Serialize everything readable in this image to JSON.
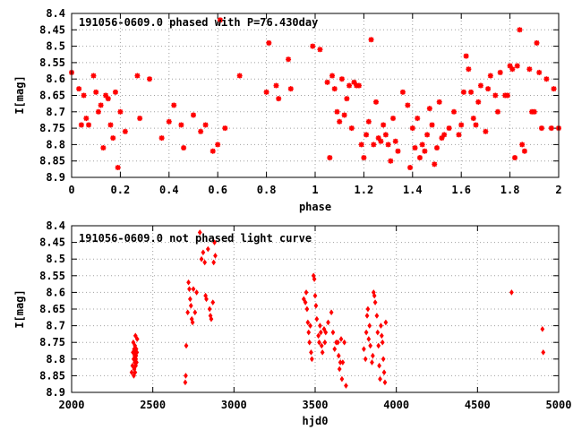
{
  "colors": {
    "points": "#ff0000",
    "axes": "#000000",
    "grid": "#a0a0a0"
  },
  "chart_data": [
    {
      "type": "scatter",
      "title": "191056-0609.0 phased with P=76.430day",
      "xlabel": "phase",
      "ylabel": "I[mag]",
      "xlim": [
        0,
        2
      ],
      "ylim": [
        8.4,
        8.9
      ],
      "y_inverted": true,
      "grid": true,
      "x_ticks": [
        "0",
        "0.2",
        "0.4",
        "0.6",
        "0.8",
        "1",
        "1.2",
        "1.4",
        "1.6",
        "1.8",
        "2"
      ],
      "y_ticks": [
        "8.4",
        "8.45",
        "8.5",
        "8.55",
        "8.6",
        "8.65",
        "8.7",
        "8.75",
        "8.8",
        "8.85",
        "8.9"
      ],
      "series": [
        {
          "marker": "star",
          "x": [
            0.0,
            0.03,
            0.04,
            0.05,
            0.06,
            0.07,
            0.09,
            0.1,
            0.11,
            0.12,
            0.13,
            0.14,
            0.15,
            0.16,
            0.17,
            0.18,
            0.19,
            0.2,
            0.22,
            0.27,
            0.28,
            0.32,
            0.37,
            0.4,
            0.42,
            0.45,
            0.46,
            0.5,
            0.53,
            0.55,
            0.58,
            0.6,
            0.61,
            0.63,
            0.69,
            0.8,
            0.81,
            0.84,
            0.85,
            0.89,
            0.9,
            0.99,
            1.02,
            1.05,
            1.06,
            1.07,
            1.08,
            1.09,
            1.1,
            1.11,
            1.12,
            1.13,
            1.14,
            1.15,
            1.16,
            1.17,
            1.18,
            1.19,
            1.2,
            1.21,
            1.22,
            1.23,
            1.24,
            1.25,
            1.26,
            1.27,
            1.28,
            1.29,
            1.3,
            1.31,
            1.32,
            1.33,
            1.34,
            1.36,
            1.38,
            1.39,
            1.4,
            1.41,
            1.42,
            1.43,
            1.44,
            1.45,
            1.46,
            1.47,
            1.48,
            1.49,
            1.5,
            1.51,
            1.52,
            1.53,
            1.55,
            1.57,
            1.59,
            1.6,
            1.61,
            1.62,
            1.63,
            1.64,
            1.65,
            1.66,
            1.67,
            1.68,
            1.7,
            1.71,
            1.72,
            1.74,
            1.75,
            1.76,
            1.78,
            1.79,
            1.8,
            1.81,
            1.82,
            1.83,
            1.84,
            1.85,
            1.86,
            1.88,
            1.89,
            1.9,
            1.91,
            1.92,
            1.93,
            1.95,
            1.97,
            1.98,
            2.0
          ],
          "y": [
            8.58,
            8.63,
            8.74,
            8.65,
            8.72,
            8.74,
            8.59,
            8.64,
            8.7,
            8.68,
            8.81,
            8.65,
            8.66,
            8.74,
            8.78,
            8.64,
            8.87,
            8.7,
            8.76,
            8.59,
            8.72,
            8.6,
            8.78,
            8.73,
            8.68,
            8.74,
            8.81,
            8.71,
            8.76,
            8.74,
            8.82,
            8.8,
            8.42,
            8.75,
            8.59,
            8.64,
            8.49,
            8.62,
            8.66,
            8.54,
            8.63,
            8.5,
            8.51,
            8.61,
            8.84,
            8.59,
            8.63,
            8.7,
            8.73,
            8.6,
            8.71,
            8.66,
            8.62,
            8.75,
            8.61,
            8.62,
            8.62,
            8.8,
            8.84,
            8.77,
            8.73,
            8.48,
            8.8,
            8.67,
            8.78,
            8.79,
            8.74,
            8.77,
            8.8,
            8.85,
            8.72,
            8.79,
            8.82,
            8.64,
            8.68,
            8.87,
            8.75,
            8.81,
            8.72,
            8.84,
            8.8,
            8.82,
            8.77,
            8.69,
            8.74,
            8.86,
            8.81,
            8.67,
            8.78,
            8.77,
            8.75,
            8.7,
            8.77,
            8.74,
            8.64,
            8.53,
            8.57,
            8.64,
            8.72,
            8.74,
            8.67,
            8.62,
            8.76,
            8.63,
            8.59,
            8.65,
            8.7,
            8.58,
            8.65,
            8.65,
            8.56,
            8.57,
            8.84,
            8.56,
            8.45,
            8.8,
            8.82,
            8.57,
            8.7,
            8.7,
            8.49,
            8.58,
            8.75,
            8.6,
            8.75,
            8.63,
            8.75
          ]
        }
      ]
    },
    {
      "type": "scatter",
      "title": "191056-0609.0 not phased light curve",
      "xlabel": "hjd0",
      "ylabel": "I[mag]",
      "xlim": [
        2000,
        5000
      ],
      "ylim": [
        8.4,
        8.9
      ],
      "y_inverted": true,
      "grid": true,
      "x_ticks": [
        "2000",
        "2500",
        "3000",
        "3500",
        "4000",
        "4500",
        "5000"
      ],
      "y_ticks": [
        "8.4",
        "8.45",
        "8.5",
        "8.55",
        "8.6",
        "8.65",
        "8.7",
        "8.75",
        "8.8",
        "8.85",
        "8.9"
      ],
      "series": [
        {
          "marker": "diamond",
          "x": [
            2370,
            2375,
            2378,
            2380,
            2382,
            2383,
            2385,
            2386,
            2388,
            2389,
            2390,
            2391,
            2392,
            2393,
            2394,
            2395,
            2396,
            2397,
            2398,
            2400,
            2402,
            2404,
            2700,
            2703,
            2706,
            2715,
            2720,
            2725,
            2730,
            2735,
            2740,
            2745,
            2750,
            2760,
            2770,
            2790,
            2800,
            2810,
            2820,
            2825,
            2830,
            2840,
            2850,
            2855,
            2860,
            2870,
            2875,
            2880,
            2885,
            3430,
            3440,
            3445,
            3450,
            3455,
            3460,
            3465,
            3470,
            3475,
            3480,
            3490,
            3495,
            3500,
            3505,
            3510,
            3520,
            3525,
            3530,
            3535,
            3540,
            3545,
            3555,
            3560,
            3565,
            3580,
            3600,
            3610,
            3620,
            3630,
            3640,
            3645,
            3650,
            3655,
            3660,
            3665,
            3670,
            3680,
            3690,
            3800,
            3810,
            3815,
            3820,
            3825,
            3830,
            3835,
            3840,
            3850,
            3855,
            3860,
            3865,
            3870,
            3880,
            3885,
            3890,
            3895,
            3900,
            3905,
            3910,
            3915,
            3920,
            3925,
            3930,
            3935,
            4710,
            4900,
            4905
          ],
          "y": [
            8.84,
            8.82,
            8.78,
            8.75,
            8.8,
            8.85,
            8.77,
            8.83,
            8.79,
            8.81,
            8.76,
            8.84,
            8.8,
            8.73,
            8.78,
            8.82,
            8.8,
            8.79,
            8.77,
            8.81,
            8.78,
            8.74,
            8.87,
            8.85,
            8.76,
            8.66,
            8.57,
            8.59,
            8.62,
            8.64,
            8.68,
            8.69,
            8.59,
            8.66,
            8.6,
            8.42,
            8.5,
            8.48,
            8.51,
            8.61,
            8.62,
            8.47,
            8.65,
            8.67,
            8.68,
            8.63,
            8.51,
            8.45,
            8.49,
            8.62,
            8.63,
            8.6,
            8.65,
            8.69,
            8.72,
            8.75,
            8.7,
            8.78,
            8.8,
            8.55,
            8.56,
            8.61,
            8.64,
            8.68,
            8.73,
            8.75,
            8.7,
            8.72,
            8.76,
            8.78,
            8.71,
            8.75,
            8.72,
            8.69,
            8.66,
            8.72,
            8.77,
            8.75,
            8.75,
            8.79,
            8.83,
            8.81,
            8.74,
            8.86,
            8.81,
            8.75,
            8.88,
            8.77,
            8.8,
            8.72,
            8.67,
            8.65,
            8.74,
            8.7,
            8.76,
            8.81,
            8.79,
            8.6,
            8.61,
            8.63,
            8.67,
            8.72,
            8.76,
            8.82,
            8.86,
            8.7,
            8.73,
            8.75,
            8.8,
            8.84,
            8.87,
            8.69,
            8.6,
            8.71,
            8.78
          ]
        }
      ]
    }
  ]
}
